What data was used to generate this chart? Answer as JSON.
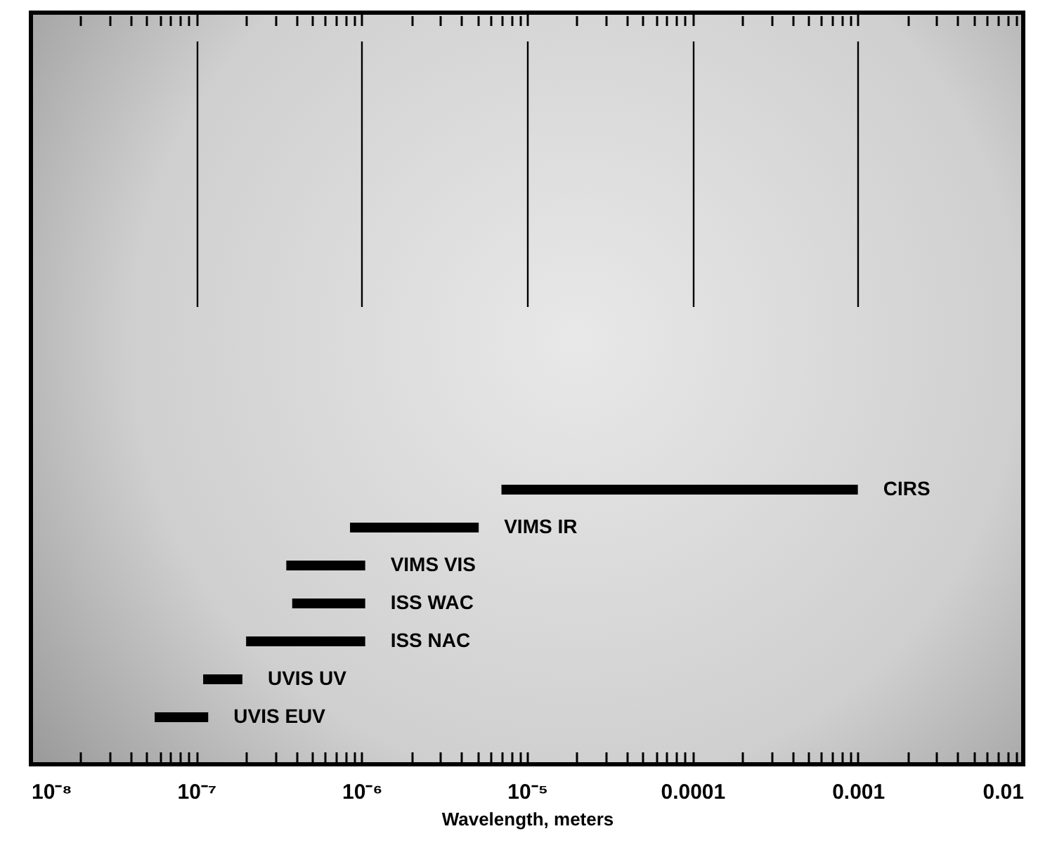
{
  "chart_data": {
    "type": "bar",
    "orientation": "horizontal",
    "xlabel": "Wavelength, meters",
    "categories": [
      "CIRS",
      "VIMS IR",
      "VIMS VIS",
      "ISS WAC",
      "ISS NAC",
      "UVIS UV",
      "UVIS EUV"
    ],
    "base": [
      7e-06,
      8.5e-07,
      3.5e-07,
      3.8e-07,
      2e-07,
      1.1e-07,
      5.6e-08
    ],
    "values": [
      0.000993,
      4.25e-06,
      7e-07,
      6.7e-07,
      8.5e-07,
      8e-08,
      6.2e-08
    ],
    "color": "#000000",
    "log": "x",
    "grid": "x",
    "tick_labels": "x",
    "xlim": [
      1e-08,
      0.01
    ],
    "xticks": [
      {
        "value": 1e-08,
        "label": "10⁻⁸"
      },
      {
        "value": 2e-08,
        "label": null
      },
      {
        "value": 3e-08,
        "label": null
      },
      {
        "value": 4e-08,
        "label": null
      },
      {
        "value": 5e-08,
        "label": null
      },
      {
        "value": 6e-08,
        "label": null
      },
      {
        "value": 7e-08,
        "label": null
      },
      {
        "value": 8e-08,
        "label": null
      },
      {
        "value": 9e-08,
        "label": null
      },
      {
        "value": 1e-07,
        "label": "10⁻⁷"
      },
      {
        "value": 2e-07,
        "label": null
      },
      {
        "value": 3e-07,
        "label": null
      },
      {
        "value": 4e-07,
        "label": null
      },
      {
        "value": 5e-07,
        "label": null
      },
      {
        "value": 6e-07,
        "label": null
      },
      {
        "value": 7e-07,
        "label": null
      },
      {
        "value": 8e-07,
        "label": null
      },
      {
        "value": 9e-07,
        "label": null
      },
      {
        "value": 1e-06,
        "label": "10⁻⁶"
      },
      {
        "value": 2e-06,
        "label": null
      },
      {
        "value": 3e-06,
        "label": null
      },
      {
        "value": 4e-06,
        "label": null
      },
      {
        "value": 5e-06,
        "label": null
      },
      {
        "value": 6e-06,
        "label": null
      },
      {
        "value": 7e-06,
        "label": null
      },
      {
        "value": 8e-06,
        "label": null
      },
      {
        "value": 9e-06,
        "label": null
      },
      {
        "value": 1e-05,
        "label": "10⁻⁵"
      },
      {
        "value": 2e-05,
        "label": null
      },
      {
        "value": 3e-05,
        "label": null
      },
      {
        "value": 4e-05,
        "label": null
      },
      {
        "value": 5e-05,
        "label": null
      },
      {
        "value": 6e-05,
        "label": null
      },
      {
        "value": 7e-05,
        "label": null
      },
      {
        "value": 8e-05,
        "label": null
      },
      {
        "value": 9e-05,
        "label": null
      },
      0.0001,
      {
        "value": 0.0002,
        "label": null
      },
      {
        "value": 0.0003,
        "label": null
      },
      {
        "value": 0.0004,
        "label": null
      },
      {
        "value": 0.0005,
        "label": null
      },
      {
        "value": 0.0006,
        "label": null
      },
      {
        "value": 0.0007,
        "label": null
      },
      {
        "value": 0.0008,
        "label": null
      },
      {
        "value": 0.0009,
        "label": null
      },
      0.001,
      {
        "value": 0.002,
        "label": null
      },
      {
        "value": 0.003,
        "label": null
      },
      {
        "value": 0.004,
        "label": null
      },
      {
        "value": 0.005,
        "label": null
      },
      {
        "value": 0.006,
        "label": null
      },
      {
        "value": 0.007,
        "label": null
      },
      {
        "value": 0.008,
        "label": null
      },
      {
        "value": 0.009,
        "label": null
      },
      0.01
    ]
  }
}
